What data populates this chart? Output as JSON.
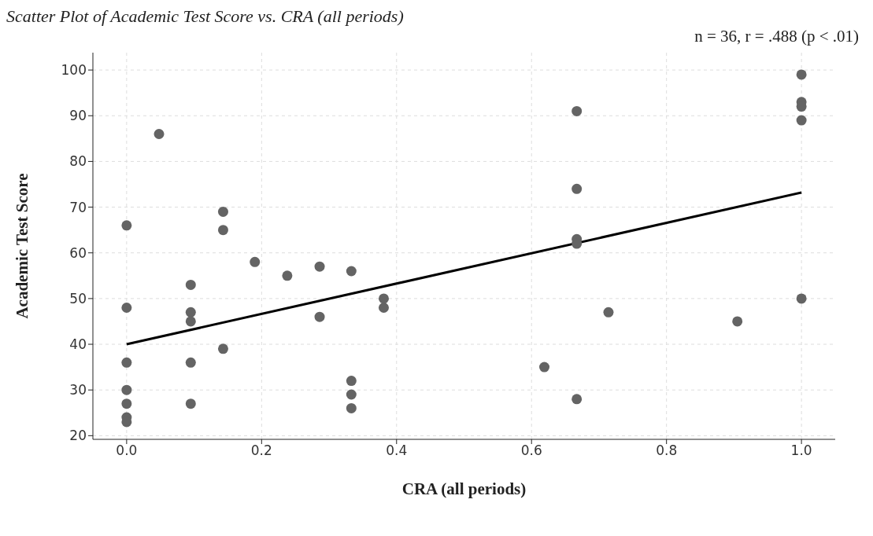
{
  "chart_data": {
    "type": "scatter",
    "title": "Scatter Plot of Academic Test Score vs. CRA (all periods)",
    "annotations": [
      "n = 36, r = .488 (p < .01)"
    ],
    "xlabel": "CRA (all periods)",
    "ylabel": "Academic Test Score",
    "xlim": [
      -0.05,
      1.05
    ],
    "xticks": [
      {
        "value": 0,
        "label": "0.0"
      },
      0.2,
      0.4,
      0.6,
      0.8,
      {
        "value": 1,
        "label": "1.0"
      }
    ],
    "ylim": [
      19.2,
      103.8
    ],
    "yticks": [
      20,
      30,
      40,
      50,
      60,
      70,
      80,
      90,
      100
    ],
    "grid": true,
    "series": [
      {
        "color": "#646464",
        "marker": "circle",
        "x": [
          0,
          0,
          0,
          0,
          0,
          0,
          0,
          0.048,
          0.095,
          0.095,
          0.095,
          0.095,
          0.095,
          0.143,
          0.143,
          0.143,
          0.19,
          0.238,
          0.286,
          0.286,
          0.333,
          0.333,
          0.333,
          0.333,
          0.381,
          0.381,
          0.619,
          0.667,
          0.667,
          0.667,
          0.667,
          0.667,
          0.714,
          0.905,
          1,
          1,
          1,
          1,
          1
        ],
        "values": [
          66,
          48,
          36,
          30,
          27,
          24,
          23,
          86,
          53,
          47,
          45,
          36,
          27,
          69,
          65,
          39,
          58,
          55,
          57,
          46,
          56,
          32,
          29,
          26,
          50,
          48,
          35,
          91,
          74,
          63,
          62,
          28,
          47,
          45,
          99,
          93,
          92,
          89,
          50
        ]
      },
      {
        "type": "line",
        "color": "#000000",
        "marker": "none",
        "line_style": "solid",
        "x": [
          0,
          1
        ],
        "values": [
          40,
          73.2
        ]
      }
    ]
  }
}
